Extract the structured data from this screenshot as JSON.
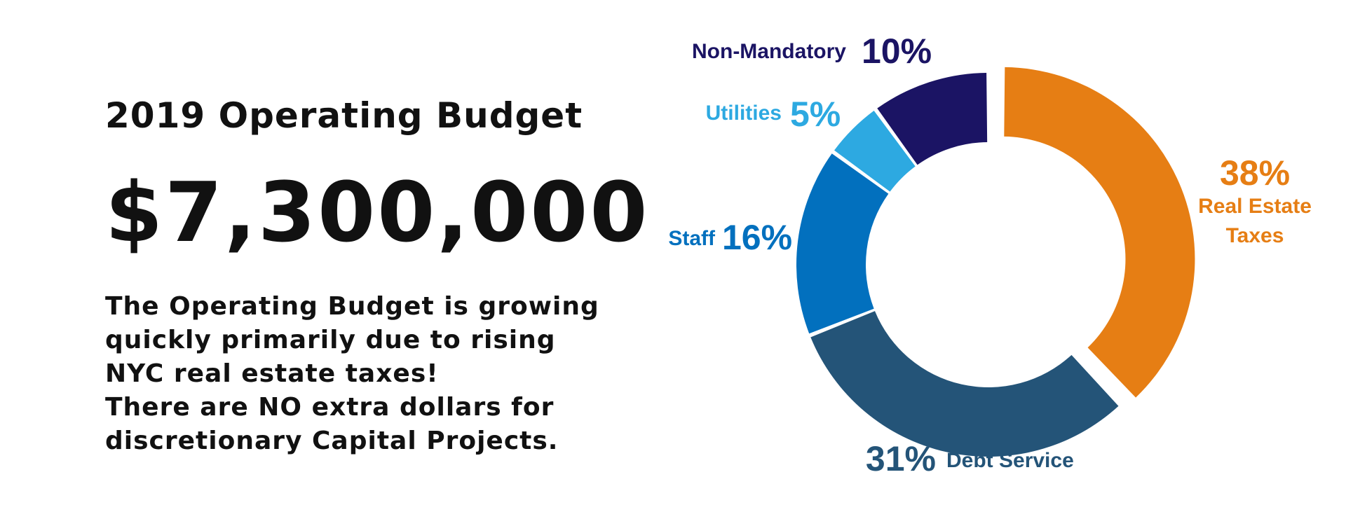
{
  "header": {
    "title": "2019 Operating Budget",
    "amount": "$7,300,000"
  },
  "description": {
    "lines": [
      "The Operating Budget is growing",
      "quickly primarily due to rising",
      "NYC real estate taxes!",
      "There are NO extra dollars for",
      "discretionary Capital Projects."
    ]
  },
  "chart_data": {
    "type": "pie",
    "variant": "donut",
    "title": "",
    "slices": [
      {
        "label": "Real Estate Taxes",
        "label_lines": [
          "Real Estate",
          "Taxes"
        ],
        "pct_text": "38%",
        "value": 38,
        "color": "#E67E14",
        "exploded": true
      },
      {
        "label": "Debt Service",
        "label_lines": [
          "Debt Service"
        ],
        "pct_text": "31%",
        "value": 31,
        "color": "#245478"
      },
      {
        "label": "Staff",
        "label_lines": [
          "Staff"
        ],
        "pct_text": "16%",
        "value": 16,
        "color": "#0270BE"
      },
      {
        "label": "Utilities",
        "label_lines": [
          "Utilities"
        ],
        "pct_text": "5%",
        "value": 5,
        "color": "#2DA9E1"
      },
      {
        "label": "Non-Mandatory",
        "label_lines": [
          "Non-Mandatory"
        ],
        "pct_text": "10%",
        "value": 10,
        "color": "#1B1464"
      }
    ],
    "legend": "none"
  }
}
